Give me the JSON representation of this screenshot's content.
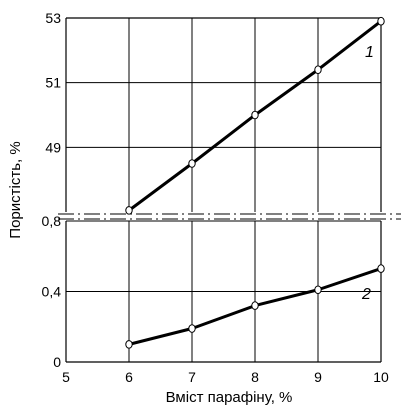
{
  "chart_data": {
    "type": "line",
    "xlabel": "Вміст парафіну,  %",
    "ylabel": "Пористість,  %",
    "x_ticks": [
      "5",
      "6",
      "7",
      "8",
      "9",
      "10"
    ],
    "xlim": [
      5,
      10
    ],
    "grid": true,
    "panels": [
      {
        "ylim": [
          47,
          53
        ],
        "y_ticks": [
          "49",
          "51",
          "53"
        ],
        "series": [
          {
            "name": "1",
            "x": [
              6,
              7,
              8,
              9,
              10
            ],
            "y": [
              47.05,
              48.5,
              50.0,
              51.4,
              52.9
            ]
          }
        ]
      },
      {
        "ylim": [
          0,
          0.8
        ],
        "y_ticks": [
          "0",
          "0,4",
          "0,8"
        ],
        "series": [
          {
            "name": "2",
            "x": [
              6,
              7,
              8,
              9,
              10
            ],
            "y": [
              0.1,
              0.19,
              0.32,
              0.41,
              0.53
            ]
          }
        ]
      }
    ]
  }
}
